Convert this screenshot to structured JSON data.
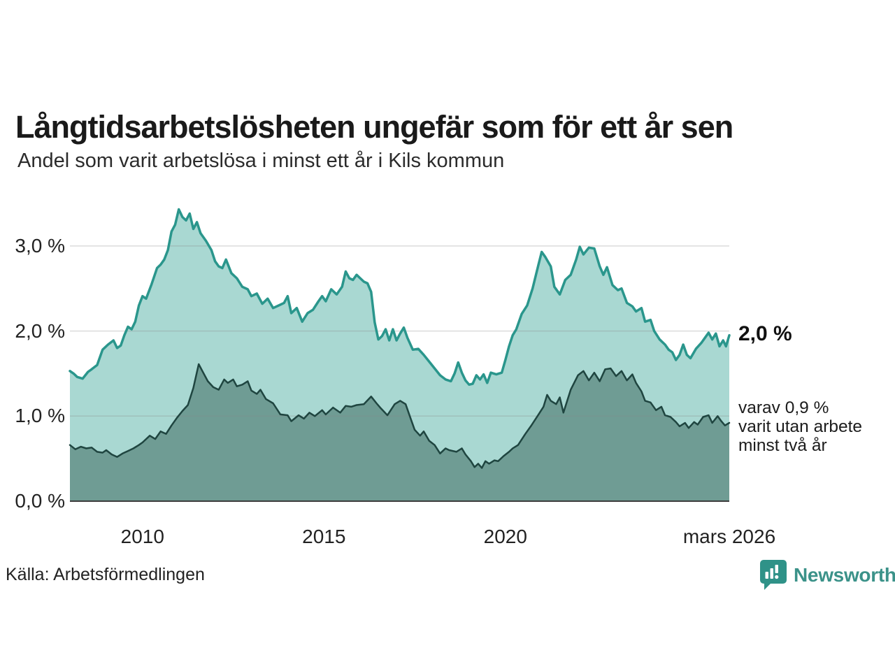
{
  "header": {
    "title": "Långtidsarbetslösheten ungefär som för ett år sen",
    "subtitle": "Andel som varit arbetslösa i minst ett år i Kils kommun"
  },
  "footer": {
    "source": "Källa: Arbetsförmedlingen",
    "brand": "Newsworthy"
  },
  "colors": {
    "accent_teal": "#2a968c",
    "area_light": "#a9d8d2",
    "area_dark": "#6f9c94",
    "line_dark": "#1f4540",
    "grid": "#888888",
    "axis": "#3d3d3d",
    "brand_teal": "#3b9289",
    "brand_icon": "#2f9288"
  },
  "chart_data": {
    "type": "area",
    "title": "Långtidsarbetslösheten ungefär som för ett år sen",
    "subtitle": "Andel som varit arbetslösa i minst ett år i Kils kommun",
    "unit": "%",
    "grid": true,
    "legend_position": "none",
    "x_domain": [
      2008.0,
      2026.17
    ],
    "y_domain": [
      0,
      3.5
    ],
    "grid_values": [
      1,
      2,
      3
    ],
    "y_ticks": [
      {
        "v": 3,
        "label": "3,0 %"
      },
      {
        "v": 2,
        "label": "2,0 %"
      },
      {
        "v": 1,
        "label": "1,0 %"
      },
      {
        "v": 0,
        "label": "0,0 %"
      }
    ],
    "x_ticks": [
      {
        "t": 2010,
        "label": "2010"
      },
      {
        "t": 2015,
        "label": "2015"
      },
      {
        "t": 2020,
        "label": "2020"
      },
      {
        "t": 2026.17,
        "label": "mars 2026"
      }
    ],
    "annotations": [
      {
        "id": "latest-total",
        "text": "2,0 %",
        "v": 1.95,
        "style": "bold"
      },
      {
        "id": "latest-two-year",
        "lines": [
          "varav 0,9 %",
          "varit utan arbete",
          "minst två år"
        ],
        "top": 570
      }
    ],
    "series": [
      {
        "name": "arbetslösa minst ett år",
        "stroke": "#2a968c",
        "stroke_width": 3.5,
        "fill": "#a9d8d2",
        "points": [
          [
            2008.0,
            1.53
          ],
          [
            2008.1,
            1.5
          ],
          [
            2008.2,
            1.46
          ],
          [
            2008.35,
            1.44
          ],
          [
            2008.5,
            1.52
          ],
          [
            2008.6,
            1.55
          ],
          [
            2008.75,
            1.6
          ],
          [
            2008.9,
            1.78
          ],
          [
            2009.05,
            1.84
          ],
          [
            2009.2,
            1.89
          ],
          [
            2009.3,
            1.8
          ],
          [
            2009.4,
            1.83
          ],
          [
            2009.5,
            1.95
          ],
          [
            2009.6,
            2.05
          ],
          [
            2009.7,
            2.02
          ],
          [
            2009.8,
            2.11
          ],
          [
            2009.9,
            2.3
          ],
          [
            2010.0,
            2.41
          ],
          [
            2010.1,
            2.38
          ],
          [
            2010.25,
            2.55
          ],
          [
            2010.4,
            2.74
          ],
          [
            2010.5,
            2.78
          ],
          [
            2010.6,
            2.84
          ],
          [
            2010.7,
            2.95
          ],
          [
            2010.8,
            3.17
          ],
          [
            2010.9,
            3.25
          ],
          [
            2011.0,
            3.43
          ],
          [
            2011.1,
            3.34
          ],
          [
            2011.2,
            3.3
          ],
          [
            2011.3,
            3.38
          ],
          [
            2011.4,
            3.2
          ],
          [
            2011.5,
            3.28
          ],
          [
            2011.6,
            3.15
          ],
          [
            2011.75,
            3.06
          ],
          [
            2011.9,
            2.95
          ],
          [
            2012.0,
            2.82
          ],
          [
            2012.1,
            2.76
          ],
          [
            2012.2,
            2.74
          ],
          [
            2012.3,
            2.84
          ],
          [
            2012.45,
            2.68
          ],
          [
            2012.6,
            2.62
          ],
          [
            2012.75,
            2.52
          ],
          [
            2012.9,
            2.49
          ],
          [
            2013.0,
            2.41
          ],
          [
            2013.15,
            2.44
          ],
          [
            2013.3,
            2.32
          ],
          [
            2013.45,
            2.38
          ],
          [
            2013.6,
            2.27
          ],
          [
            2013.75,
            2.3
          ],
          [
            2013.9,
            2.33
          ],
          [
            2014.0,
            2.41
          ],
          [
            2014.1,
            2.21
          ],
          [
            2014.25,
            2.27
          ],
          [
            2014.4,
            2.11
          ],
          [
            2014.55,
            2.21
          ],
          [
            2014.7,
            2.25
          ],
          [
            2014.85,
            2.35
          ],
          [
            2014.95,
            2.41
          ],
          [
            2015.05,
            2.35
          ],
          [
            2015.2,
            2.49
          ],
          [
            2015.35,
            2.43
          ],
          [
            2015.5,
            2.52
          ],
          [
            2015.6,
            2.7
          ],
          [
            2015.7,
            2.62
          ],
          [
            2015.8,
            2.6
          ],
          [
            2015.9,
            2.66
          ],
          [
            2016.0,
            2.62
          ],
          [
            2016.1,
            2.58
          ],
          [
            2016.2,
            2.56
          ],
          [
            2016.3,
            2.46
          ],
          [
            2016.4,
            2.1
          ],
          [
            2016.5,
            1.9
          ],
          [
            2016.6,
            1.94
          ],
          [
            2016.7,
            2.02
          ],
          [
            2016.8,
            1.89
          ],
          [
            2016.9,
            2.02
          ],
          [
            2017.0,
            1.89
          ],
          [
            2017.1,
            1.97
          ],
          [
            2017.2,
            2.04
          ],
          [
            2017.3,
            1.92
          ],
          [
            2017.45,
            1.78
          ],
          [
            2017.6,
            1.79
          ],
          [
            2017.75,
            1.72
          ],
          [
            2017.9,
            1.64
          ],
          [
            2018.05,
            1.56
          ],
          [
            2018.2,
            1.48
          ],
          [
            2018.35,
            1.43
          ],
          [
            2018.5,
            1.41
          ],
          [
            2018.6,
            1.5
          ],
          [
            2018.7,
            1.63
          ],
          [
            2018.8,
            1.51
          ],
          [
            2018.9,
            1.42
          ],
          [
            2019.0,
            1.37
          ],
          [
            2019.1,
            1.38
          ],
          [
            2019.2,
            1.48
          ],
          [
            2019.3,
            1.43
          ],
          [
            2019.4,
            1.49
          ],
          [
            2019.5,
            1.39
          ],
          [
            2019.6,
            1.51
          ],
          [
            2019.75,
            1.49
          ],
          [
            2019.9,
            1.51
          ],
          [
            2020.0,
            1.66
          ],
          [
            2020.1,
            1.82
          ],
          [
            2020.2,
            1.95
          ],
          [
            2020.3,
            2.02
          ],
          [
            2020.45,
            2.2
          ],
          [
            2020.6,
            2.3
          ],
          [
            2020.75,
            2.5
          ],
          [
            2020.9,
            2.76
          ],
          [
            2021.0,
            2.93
          ],
          [
            2021.1,
            2.87
          ],
          [
            2021.25,
            2.76
          ],
          [
            2021.35,
            2.52
          ],
          [
            2021.5,
            2.43
          ],
          [
            2021.65,
            2.6
          ],
          [
            2021.8,
            2.66
          ],
          [
            2021.95,
            2.84
          ],
          [
            2022.05,
            2.99
          ],
          [
            2022.15,
            2.9
          ],
          [
            2022.3,
            2.98
          ],
          [
            2022.45,
            2.97
          ],
          [
            2022.6,
            2.76
          ],
          [
            2022.7,
            2.66
          ],
          [
            2022.8,
            2.75
          ],
          [
            2022.95,
            2.54
          ],
          [
            2023.1,
            2.48
          ],
          [
            2023.2,
            2.5
          ],
          [
            2023.35,
            2.33
          ],
          [
            2023.5,
            2.29
          ],
          [
            2023.6,
            2.23
          ],
          [
            2023.75,
            2.27
          ],
          [
            2023.85,
            2.11
          ],
          [
            2024.0,
            2.13
          ],
          [
            2024.1,
            2.0
          ],
          [
            2024.25,
            1.9
          ],
          [
            2024.4,
            1.84
          ],
          [
            2024.5,
            1.78
          ],
          [
            2024.6,
            1.75
          ],
          [
            2024.7,
            1.66
          ],
          [
            2024.8,
            1.72
          ],
          [
            2024.9,
            1.84
          ],
          [
            2025.0,
            1.72
          ],
          [
            2025.1,
            1.68
          ],
          [
            2025.25,
            1.79
          ],
          [
            2025.4,
            1.86
          ],
          [
            2025.5,
            1.92
          ],
          [
            2025.6,
            1.98
          ],
          [
            2025.7,
            1.9
          ],
          [
            2025.8,
            1.97
          ],
          [
            2025.9,
            1.82
          ],
          [
            2026.0,
            1.89
          ],
          [
            2026.08,
            1.82
          ],
          [
            2026.17,
            1.95
          ]
        ]
      },
      {
        "name": "varit utan arbete minst två år",
        "stroke": "#1f4540",
        "stroke_width": 2.5,
        "fill": "#6f9c94",
        "points": [
          [
            2008.0,
            0.66
          ],
          [
            2008.15,
            0.61
          ],
          [
            2008.3,
            0.64
          ],
          [
            2008.45,
            0.62
          ],
          [
            2008.6,
            0.63
          ],
          [
            2008.75,
            0.58
          ],
          [
            2008.9,
            0.57
          ],
          [
            2009.0,
            0.6
          ],
          [
            2009.15,
            0.55
          ],
          [
            2009.3,
            0.52
          ],
          [
            2009.45,
            0.56
          ],
          [
            2009.6,
            0.59
          ],
          [
            2009.75,
            0.62
          ],
          [
            2009.9,
            0.66
          ],
          [
            2010.0,
            0.69
          ],
          [
            2010.2,
            0.77
          ],
          [
            2010.35,
            0.73
          ],
          [
            2010.5,
            0.82
          ],
          [
            2010.65,
            0.79
          ],
          [
            2010.8,
            0.89
          ],
          [
            2010.95,
            0.98
          ],
          [
            2011.1,
            1.06
          ],
          [
            2011.25,
            1.13
          ],
          [
            2011.4,
            1.33
          ],
          [
            2011.55,
            1.61
          ],
          [
            2011.65,
            1.53
          ],
          [
            2011.8,
            1.41
          ],
          [
            2011.95,
            1.34
          ],
          [
            2012.1,
            1.31
          ],
          [
            2012.25,
            1.43
          ],
          [
            2012.35,
            1.39
          ],
          [
            2012.5,
            1.43
          ],
          [
            2012.6,
            1.35
          ],
          [
            2012.75,
            1.37
          ],
          [
            2012.9,
            1.41
          ],
          [
            2013.0,
            1.3
          ],
          [
            2013.15,
            1.26
          ],
          [
            2013.25,
            1.31
          ],
          [
            2013.4,
            1.2
          ],
          [
            2013.6,
            1.15
          ],
          [
            2013.8,
            1.02
          ],
          [
            2014.0,
            1.01
          ],
          [
            2014.1,
            0.94
          ],
          [
            2014.3,
            1.01
          ],
          [
            2014.45,
            0.97
          ],
          [
            2014.6,
            1.04
          ],
          [
            2014.75,
            1.0
          ],
          [
            2014.95,
            1.07
          ],
          [
            2015.05,
            1.02
          ],
          [
            2015.25,
            1.1
          ],
          [
            2015.45,
            1.04
          ],
          [
            2015.6,
            1.12
          ],
          [
            2015.75,
            1.11
          ],
          [
            2015.9,
            1.13
          ],
          [
            2016.1,
            1.14
          ],
          [
            2016.3,
            1.23
          ],
          [
            2016.45,
            1.15
          ],
          [
            2016.55,
            1.1
          ],
          [
            2016.75,
            1.01
          ],
          [
            2016.95,
            1.14
          ],
          [
            2017.1,
            1.18
          ],
          [
            2017.25,
            1.14
          ],
          [
            2017.4,
            0.96
          ],
          [
            2017.5,
            0.84
          ],
          [
            2017.65,
            0.77
          ],
          [
            2017.75,
            0.82
          ],
          [
            2017.9,
            0.71
          ],
          [
            2018.05,
            0.66
          ],
          [
            2018.2,
            0.56
          ],
          [
            2018.35,
            0.62
          ],
          [
            2018.45,
            0.6
          ],
          [
            2018.65,
            0.58
          ],
          [
            2018.8,
            0.62
          ],
          [
            2018.9,
            0.55
          ],
          [
            2019.05,
            0.47
          ],
          [
            2019.15,
            0.4
          ],
          [
            2019.25,
            0.44
          ],
          [
            2019.35,
            0.39
          ],
          [
            2019.45,
            0.47
          ],
          [
            2019.55,
            0.44
          ],
          [
            2019.7,
            0.48
          ],
          [
            2019.8,
            0.47
          ],
          [
            2019.95,
            0.53
          ],
          [
            2020.1,
            0.58
          ],
          [
            2020.2,
            0.62
          ],
          [
            2020.35,
            0.66
          ],
          [
            2020.55,
            0.79
          ],
          [
            2020.7,
            0.88
          ],
          [
            2020.9,
            1.01
          ],
          [
            2021.05,
            1.11
          ],
          [
            2021.15,
            1.25
          ],
          [
            2021.25,
            1.18
          ],
          [
            2021.4,
            1.14
          ],
          [
            2021.5,
            1.22
          ],
          [
            2021.6,
            1.04
          ],
          [
            2021.8,
            1.31
          ],
          [
            2022.0,
            1.48
          ],
          [
            2022.15,
            1.53
          ],
          [
            2022.3,
            1.42
          ],
          [
            2022.45,
            1.51
          ],
          [
            2022.6,
            1.41
          ],
          [
            2022.75,
            1.55
          ],
          [
            2022.9,
            1.56
          ],
          [
            2023.05,
            1.47
          ],
          [
            2023.2,
            1.53
          ],
          [
            2023.35,
            1.42
          ],
          [
            2023.5,
            1.49
          ],
          [
            2023.6,
            1.39
          ],
          [
            2023.75,
            1.29
          ],
          [
            2023.85,
            1.18
          ],
          [
            2024.0,
            1.16
          ],
          [
            2024.15,
            1.07
          ],
          [
            2024.3,
            1.11
          ],
          [
            2024.4,
            1.01
          ],
          [
            2024.55,
            0.99
          ],
          [
            2024.7,
            0.93
          ],
          [
            2024.8,
            0.88
          ],
          [
            2024.95,
            0.92
          ],
          [
            2025.05,
            0.86
          ],
          [
            2025.2,
            0.93
          ],
          [
            2025.3,
            0.9
          ],
          [
            2025.45,
            0.99
          ],
          [
            2025.6,
            1.01
          ],
          [
            2025.7,
            0.92
          ],
          [
            2025.85,
            1.0
          ],
          [
            2025.95,
            0.94
          ],
          [
            2026.05,
            0.89
          ],
          [
            2026.17,
            0.92
          ]
        ]
      }
    ]
  }
}
